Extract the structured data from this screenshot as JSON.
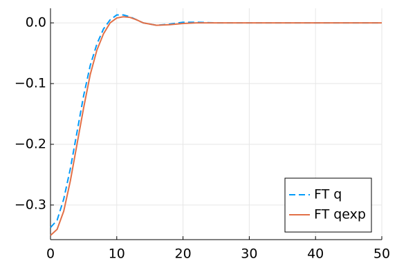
{
  "chart_data": {
    "type": "line",
    "x": [
      0,
      1,
      2,
      3,
      4,
      5,
      6,
      7,
      8,
      9,
      10,
      11,
      12,
      13,
      14,
      16,
      18,
      20,
      22,
      25,
      30,
      35,
      40,
      45,
      50
    ],
    "series": [
      {
        "name": "FT q",
        "color": "#009af9",
        "dash": true,
        "values": [
          -0.337,
          -0.325,
          -0.29,
          -0.24,
          -0.18,
          -0.12,
          -0.07,
          -0.035,
          -0.01,
          0.005,
          0.013,
          0.013,
          0.01,
          0.005,
          0.0,
          -0.004,
          -0.002,
          0.001,
          0.001,
          0.0,
          0.0,
          0.0,
          0.0,
          0.0,
          0.0
        ]
      },
      {
        "name": "FT qexp",
        "color": "#e26f46",
        "dash": false,
        "values": [
          -0.35,
          -0.34,
          -0.31,
          -0.26,
          -0.2,
          -0.14,
          -0.085,
          -0.045,
          -0.018,
          0.0,
          0.008,
          0.01,
          0.009,
          0.005,
          0.0,
          -0.004,
          -0.003,
          -0.001,
          0.0,
          0.0,
          0.0,
          0.0,
          0.0,
          0.0,
          0.0
        ]
      }
    ],
    "xlim": [
      0,
      50
    ],
    "xticks": [
      0,
      10,
      20,
      30,
      40,
      50
    ],
    "ylim": [
      -0.357,
      0.024
    ],
    "yticks": [
      {
        "value": -0.3,
        "label": "−0.3"
      },
      {
        "value": -0.2,
        "label": "−0.2"
      },
      {
        "value": -0.1,
        "label": "−0.1"
      },
      {
        "value": 0,
        "label": "0.0"
      }
    ],
    "grid": true,
    "legend": "bottom-right"
  }
}
